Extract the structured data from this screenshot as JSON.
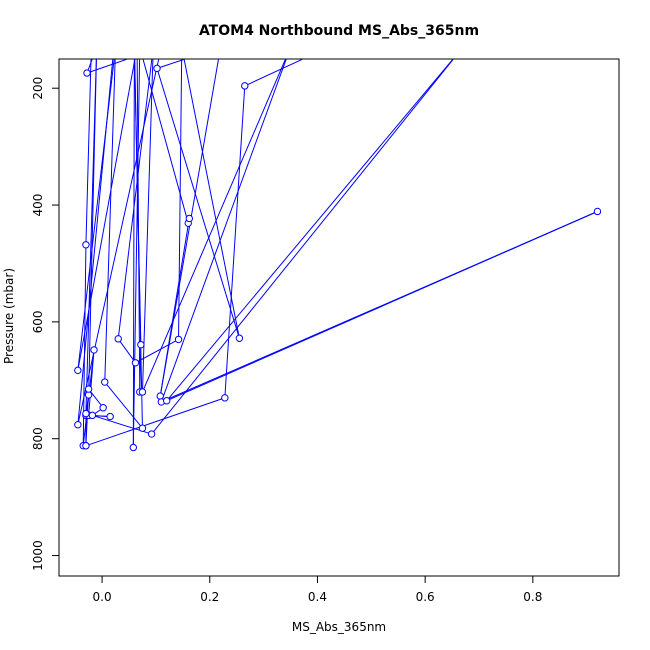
{
  "chart_data": {
    "type": "line",
    "title": "ATOM4 Northbound MS_Abs_365nm",
    "xlabel": "MS_Abs_365nm",
    "ylabel": "Pressure (mbar)",
    "xlim": [
      -0.08,
      0.96
    ],
    "ylim": [
      1035,
      150
    ],
    "y_reversed": true,
    "x_ticks": [
      0.0,
      0.2,
      0.4,
      0.6,
      0.8
    ],
    "x_tick_labels": [
      "0.0",
      "0.2",
      "0.4",
      "0.6",
      "0.8"
    ],
    "y_ticks": [
      200,
      400,
      600,
      800,
      1000
    ],
    "y_tick_labels": [
      "200",
      "400",
      "600",
      "800",
      "1000"
    ],
    "grid": false,
    "colors": {
      "series": "#0000ff",
      "axes": "#000000",
      "background": "#ffffff"
    },
    "series": [
      {
        "points": [
          {
            "x": -0.03,
            "y": 812
          },
          {
            "x": -0.03,
            "y": 760
          },
          {
            "x": 0.015,
            "y": 762
          },
          {
            "x": -0.025,
            "y": 760
          },
          {
            "x": -0.015,
            "y": 648
          },
          {
            "x": -0.035,
            "y": 812
          },
          {
            "x": -0.03,
            "y": 468
          },
          {
            "x": -0.02,
            "y": 130
          },
          {
            "x": -0.01,
            "y": 130
          },
          {
            "x": -0.03,
            "y": 757
          },
          {
            "x": -0.025,
            "y": 725
          },
          {
            "x": -0.01,
            "y": 130
          },
          {
            "x": -0.028,
            "y": 174
          },
          {
            "x": 0.11,
            "y": 130
          },
          {
            "x": -0.045,
            "y": 776
          },
          {
            "x": 0.022,
            "y": 130
          },
          {
            "x": 0.06,
            "y": 130
          },
          {
            "x": 0.075,
            "y": 782
          },
          {
            "x": 0.005,
            "y": 703
          },
          {
            "x": 0.025,
            "y": 130
          },
          {
            "x": -0.045,
            "y": 683
          },
          {
            "x": 0.065,
            "y": 130
          },
          {
            "x": 0.07,
            "y": 720
          },
          {
            "x": 0.072,
            "y": 639
          },
          {
            "x": 0.06,
            "y": 130
          },
          {
            "x": 0.058,
            "y": 815
          },
          {
            "x": 0.07,
            "y": 130
          },
          {
            "x": 0.16,
            "y": 431
          },
          {
            "x": 0.162,
            "y": 423
          },
          {
            "x": 0.108,
            "y": 727
          },
          {
            "x": 0.22,
            "y": 130
          },
          {
            "x": 0.102,
            "y": 166
          },
          {
            "x": 0.255,
            "y": 628
          },
          {
            "x": 0.148,
            "y": 130
          },
          {
            "x": 0.142,
            "y": 630
          },
          {
            "x": 0.062,
            "y": 670
          },
          {
            "x": 0.03,
            "y": 629
          },
          {
            "x": 0.095,
            "y": 130
          },
          {
            "x": 0.075,
            "y": 720
          },
          {
            "x": 0.35,
            "y": 130
          },
          {
            "x": 0.11,
            "y": 737
          },
          {
            "x": 0.92,
            "y": 411
          },
          {
            "x": 0.12,
            "y": 735
          },
          {
            "x": 0.67,
            "y": 130
          },
          {
            "x": 0.092,
            "y": 792
          },
          {
            "x": -0.018,
            "y": 760
          },
          {
            "x": 0.002,
            "y": 747
          },
          {
            "x": -0.025,
            "y": 715
          },
          {
            "x": -0.03,
            "y": 812
          },
          {
            "x": 0.228,
            "y": 730
          },
          {
            "x": 0.265,
            "y": 196
          },
          {
            "x": 0.42,
            "y": 130
          }
        ]
      }
    ]
  }
}
